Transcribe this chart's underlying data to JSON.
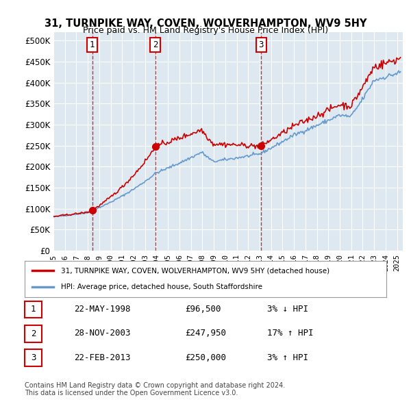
{
  "title1": "31, TURNPIKE WAY, COVEN, WOLVERHAMPTON, WV9 5HY",
  "title2": "Price paid vs. HM Land Registry's House Price Index (HPI)",
  "ylabel_ticks": [
    "£0",
    "£50K",
    "£100K",
    "£150K",
    "£200K",
    "£250K",
    "£300K",
    "£350K",
    "£400K",
    "£450K",
    "£500K"
  ],
  "ytick_values": [
    0,
    50000,
    100000,
    150000,
    200000,
    250000,
    300000,
    350000,
    400000,
    450000,
    500000
  ],
  "x_start": 1995.0,
  "x_end": 2025.5,
  "background_color": "#dde8f0",
  "plot_bg": "#dde8f0",
  "grid_color": "#ffffff",
  "sale_dates": [
    1998.39,
    2003.91,
    2013.14
  ],
  "sale_prices": [
    96500,
    247950,
    250000
  ],
  "sale_labels": [
    "1",
    "2",
    "3"
  ],
  "sale_dot_color": "#cc0000",
  "line_color_red": "#cc0000",
  "line_color_blue": "#6699cc",
  "dashed_line_color": "#cc0000",
  "legend_label_red": "31, TURNPIKE WAY, COVEN, WOLVERHAMPTON, WV9 5HY (detached house)",
  "legend_label_blue": "HPI: Average price, detached house, South Staffordshire",
  "table_rows": [
    {
      "num": "1",
      "date": "22-MAY-1998",
      "price": "£96,500",
      "change": "3% ↓ HPI"
    },
    {
      "num": "2",
      "date": "28-NOV-2003",
      "price": "£247,950",
      "change": "17% ↑ HPI"
    },
    {
      "num": "3",
      "date": "22-FEB-2013",
      "price": "£250,000",
      "change": "3% ↑ HPI"
    }
  ],
  "footer_text": "Contains HM Land Registry data © Crown copyright and database right 2024.\nThis data is licensed under the Open Government Licence v3.0.",
  "xticks": [
    1995,
    1996,
    1997,
    1998,
    1999,
    2000,
    2001,
    2002,
    2003,
    2004,
    2005,
    2006,
    2007,
    2008,
    2009,
    2010,
    2011,
    2012,
    2013,
    2014,
    2015,
    2016,
    2017,
    2018,
    2019,
    2020,
    2021,
    2022,
    2023,
    2024,
    2025
  ]
}
